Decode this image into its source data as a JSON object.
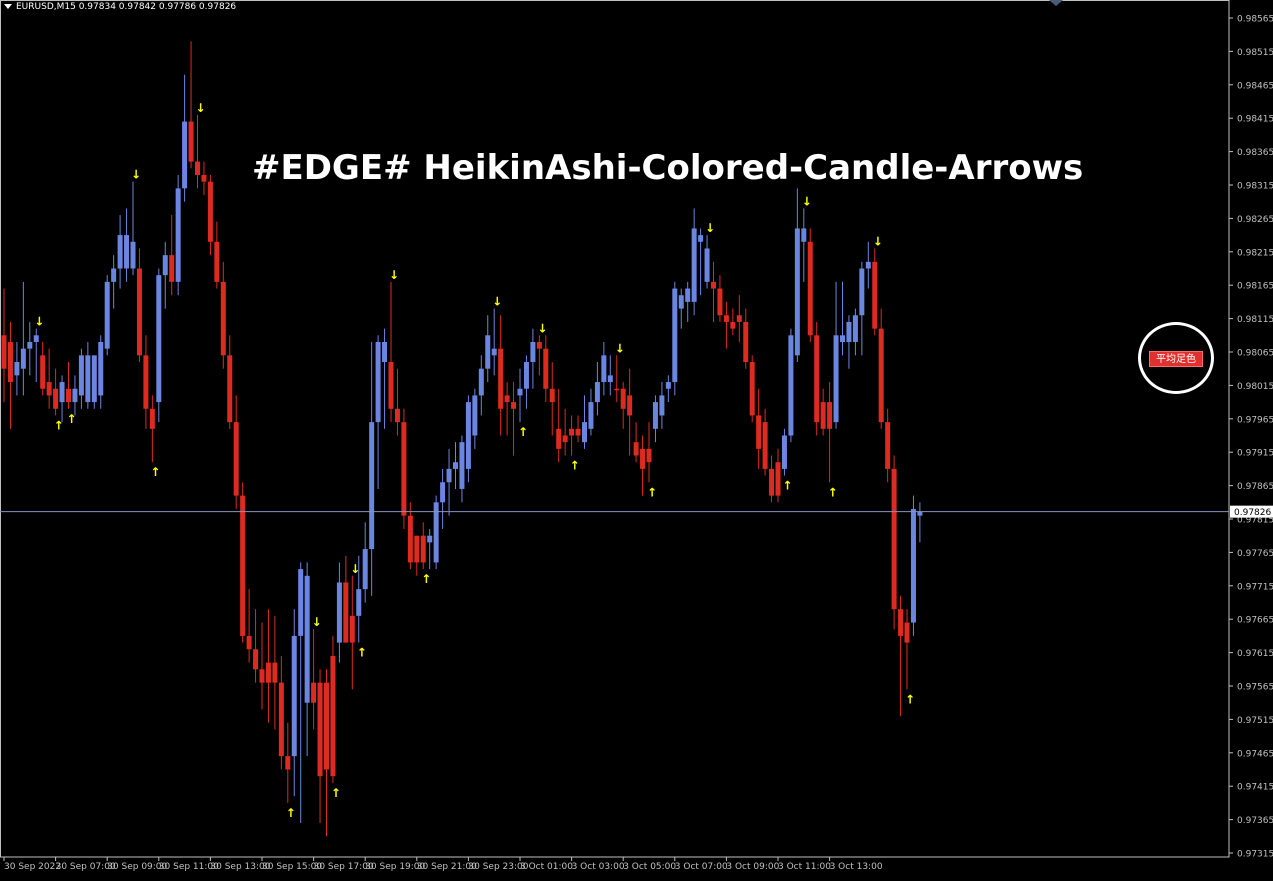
{
  "header": {
    "symbol_line": "EURUSD,M15  0.97834 0.97842 0.97786 0.97826"
  },
  "overlay": {
    "title": "#EDGE# HeikinAshi-Colored-Candle-Arrows",
    "ma_button_label": "平均足色"
  },
  "colors": {
    "background": "#000000",
    "bull": "#6a86e0",
    "bear": "#dd2b22",
    "arrow": "#ffff00",
    "price_line": "#8796c0",
    "axis": "#c0c0c0",
    "ma_button": "#e03030"
  },
  "chart_data": {
    "type": "candlestick",
    "symbol": "EURUSD",
    "timeframe": "M15",
    "ohlc_header": {
      "open": 0.97834,
      "high": 0.97842,
      "low": 0.97786,
      "close": 0.97826
    },
    "current_price": "0.97826",
    "ylim": [
      0.97315,
      0.9859
    ],
    "y_ticks": [
      "0.98565",
      "0.98515",
      "0.98465",
      "0.98415",
      "0.98365",
      "0.98315",
      "0.98265",
      "0.98215",
      "0.98165",
      "0.98115",
      "0.98065",
      "0.98015",
      "0.97965",
      "0.97915",
      "0.97865",
      "0.97815",
      "0.97765",
      "0.97715",
      "0.97665",
      "0.97615",
      "0.97565",
      "0.97515",
      "0.97465",
      "0.97415",
      "0.97365",
      "0.97315"
    ],
    "x_ticks": [
      "30 Sep 2022",
      "30 Sep 07:00",
      "30 Sep 09:00",
      "30 Sep 11:00",
      "30 Sep 13:00",
      "30 Sep 15:00",
      "30 Sep 17:00",
      "30 Sep 19:00",
      "30 Sep 21:00",
      "30 Sep 23:00",
      "3 Oct 01:00",
      "3 Oct 03:00",
      "3 Oct 05:00",
      "3 Oct 07:00",
      "3 Oct 09:00",
      "3 Oct 11:00",
      "3 Oct 13:00"
    ],
    "x_tick_index": [
      0,
      8,
      16,
      24,
      32,
      40,
      48,
      56,
      64,
      72,
      80,
      88,
      96,
      104,
      112,
      120,
      128
    ],
    "candles": [
      {
        "o": 0.9809,
        "h": 0.9816,
        "l": 0.9799,
        "c": 0.9804,
        "dir": "bear"
      },
      {
        "o": 0.9808,
        "h": 0.9811,
        "l": 0.9795,
        "c": 0.9802,
        "dir": "bear"
      },
      {
        "o": 0.9803,
        "h": 0.9808,
        "l": 0.98,
        "c": 0.9805,
        "dir": "bull"
      },
      {
        "o": 0.9804,
        "h": 0.9817,
        "l": 0.98,
        "c": 0.9807,
        "dir": "bull"
      },
      {
        "o": 0.9807,
        "h": 0.9811,
        "l": 0.9803,
        "c": 0.9808,
        "dir": "bull"
      },
      {
        "o": 0.9808,
        "h": 0.981,
        "l": 0.9802,
        "c": 0.9809,
        "dir": "bull",
        "arrow": "down"
      },
      {
        "o": 0.9806,
        "h": 0.9808,
        "l": 0.98,
        "c": 0.9801,
        "dir": "bear"
      },
      {
        "o": 0.9802,
        "h": 0.9807,
        "l": 0.9798,
        "c": 0.98,
        "dir": "bear"
      },
      {
        "o": 0.9801,
        "h": 0.9804,
        "l": 0.9797,
        "c": 0.9798,
        "dir": "bear",
        "arrow": "up"
      },
      {
        "o": 0.9799,
        "h": 0.9803,
        "l": 0.9796,
        "c": 0.9802,
        "dir": "bull"
      },
      {
        "o": 0.9801,
        "h": 0.9805,
        "l": 0.9798,
        "c": 0.9799,
        "dir": "bear",
        "arrow": "up"
      },
      {
        "o": 0.9799,
        "h": 0.9803,
        "l": 0.9797,
        "c": 0.9801,
        "dir": "bull"
      },
      {
        "o": 0.98,
        "h": 0.9807,
        "l": 0.9798,
        "c": 0.9806,
        "dir": "bull"
      },
      {
        "o": 0.9799,
        "h": 0.9808,
        "l": 0.9798,
        "c": 0.9806,
        "dir": "bull"
      },
      {
        "o": 0.9799,
        "h": 0.9806,
        "l": 0.9798,
        "c": 0.9806,
        "dir": "bull"
      },
      {
        "o": 0.98,
        "h": 0.9809,
        "l": 0.9798,
        "c": 0.9808,
        "dir": "bull"
      },
      {
        "o": 0.9807,
        "h": 0.9818,
        "l": 0.9806,
        "c": 0.9817,
        "dir": "bull"
      },
      {
        "o": 0.9817,
        "h": 0.9821,
        "l": 0.9813,
        "c": 0.9819,
        "dir": "bull"
      },
      {
        "o": 0.9819,
        "h": 0.9827,
        "l": 0.9816,
        "c": 0.9824,
        "dir": "bull"
      },
      {
        "o": 0.9819,
        "h": 0.9828,
        "l": 0.9817,
        "c": 0.9824,
        "dir": "bull"
      },
      {
        "o": 0.9819,
        "h": 0.9832,
        "l": 0.9818,
        "c": 0.9823,
        "dir": "bull",
        "arrow": "down"
      },
      {
        "o": 0.9819,
        "h": 0.9822,
        "l": 0.9805,
        "c": 0.9806,
        "dir": "bear"
      },
      {
        "o": 0.9806,
        "h": 0.9809,
        "l": 0.9795,
        "c": 0.9798,
        "dir": "bear"
      },
      {
        "o": 0.9798,
        "h": 0.98,
        "l": 0.979,
        "c": 0.9795,
        "dir": "bear",
        "arrow": "up"
      },
      {
        "o": 0.9799,
        "h": 0.9819,
        "l": 0.9796,
        "c": 0.9818,
        "dir": "bull"
      },
      {
        "o": 0.9818,
        "h": 0.9823,
        "l": 0.9813,
        "c": 0.9821,
        "dir": "bull"
      },
      {
        "o": 0.9821,
        "h": 0.9827,
        "l": 0.9815,
        "c": 0.9817,
        "dir": "bear"
      },
      {
        "o": 0.9817,
        "h": 0.9833,
        "l": 0.9815,
        "c": 0.9831,
        "dir": "bull"
      },
      {
        "o": 0.9831,
        "h": 0.9848,
        "l": 0.9829,
        "c": 0.9841,
        "dir": "bull"
      },
      {
        "o": 0.9841,
        "h": 0.9853,
        "l": 0.9834,
        "c": 0.9835,
        "dir": "bear"
      },
      {
        "o": 0.9835,
        "h": 0.9842,
        "l": 0.9831,
        "c": 0.9833,
        "dir": "bear",
        "arrow": "down"
      },
      {
        "o": 0.9833,
        "h": 0.9835,
        "l": 0.983,
        "c": 0.9832,
        "dir": "bear"
      },
      {
        "o": 0.9832,
        "h": 0.9833,
        "l": 0.9821,
        "c": 0.9823,
        "dir": "bear"
      },
      {
        "o": 0.9823,
        "h": 0.9826,
        "l": 0.9816,
        "c": 0.9817,
        "dir": "bear"
      },
      {
        "o": 0.9817,
        "h": 0.982,
        "l": 0.9804,
        "c": 0.9806,
        "dir": "bear"
      },
      {
        "o": 0.9806,
        "h": 0.9809,
        "l": 0.9795,
        "c": 0.9796,
        "dir": "bear"
      },
      {
        "o": 0.9796,
        "h": 0.98,
        "l": 0.9783,
        "c": 0.9785,
        "dir": "bear"
      },
      {
        "o": 0.9785,
        "h": 0.9787,
        "l": 0.9763,
        "c": 0.9764,
        "dir": "bear"
      },
      {
        "o": 0.9764,
        "h": 0.9771,
        "l": 0.976,
        "c": 0.9762,
        "dir": "bear"
      },
      {
        "o": 0.9762,
        "h": 0.9768,
        "l": 0.9757,
        "c": 0.9759,
        "dir": "bear"
      },
      {
        "o": 0.9759,
        "h": 0.9766,
        "l": 0.9753,
        "c": 0.9757,
        "dir": "bear"
      },
      {
        "o": 0.9757,
        "h": 0.9768,
        "l": 0.9751,
        "c": 0.976,
        "dir": "bear"
      },
      {
        "o": 0.976,
        "h": 0.9767,
        "l": 0.975,
        "c": 0.9757,
        "dir": "bear"
      },
      {
        "o": 0.9757,
        "h": 0.9761,
        "l": 0.9744,
        "c": 0.9746,
        "dir": "bear"
      },
      {
        "o": 0.9746,
        "h": 0.9751,
        "l": 0.9739,
        "c": 0.9744,
        "dir": "bear",
        "arrow": "up"
      },
      {
        "o": 0.9746,
        "h": 0.9768,
        "l": 0.974,
        "c": 0.9764,
        "dir": "bull"
      },
      {
        "o": 0.9764,
        "h": 0.9775,
        "l": 0.9736,
        "c": 0.9774,
        "dir": "bull"
      },
      {
        "o": 0.9754,
        "h": 0.9775,
        "l": 0.9746,
        "c": 0.9773,
        "dir": "bull"
      },
      {
        "o": 0.9757,
        "h": 0.9765,
        "l": 0.975,
        "c": 0.9754,
        "dir": "bear",
        "arrow": "down"
      },
      {
        "o": 0.9757,
        "h": 0.9759,
        "l": 0.9736,
        "c": 0.9743,
        "dir": "bear"
      },
      {
        "o": 0.9757,
        "h": 0.9759,
        "l": 0.9734,
        "c": 0.9744,
        "dir": "bear"
      },
      {
        "o": 0.9761,
        "h": 0.9764,
        "l": 0.9742,
        "c": 0.9743,
        "dir": "bear",
        "arrow": "up"
      },
      {
        "o": 0.9763,
        "h": 0.9775,
        "l": 0.976,
        "c": 0.9772,
        "dir": "bull"
      },
      {
        "o": 0.9772,
        "h": 0.9776,
        "l": 0.9763,
        "c": 0.9763,
        "dir": "bear"
      },
      {
        "o": 0.9763,
        "h": 0.9773,
        "l": 0.9756,
        "c": 0.9767,
        "dir": "bear",
        "arrow": "down"
      },
      {
        "o": 0.9767,
        "h": 0.9776,
        "l": 0.9763,
        "c": 0.9771,
        "dir": "bull",
        "arrow": "up"
      },
      {
        "o": 0.9771,
        "h": 0.9781,
        "l": 0.9769,
        "c": 0.9777,
        "dir": "bull"
      },
      {
        "o": 0.9777,
        "h": 0.9808,
        "l": 0.977,
        "c": 0.9796,
        "dir": "bull"
      },
      {
        "o": 0.9796,
        "h": 0.9809,
        "l": 0.9786,
        "c": 0.9808,
        "dir": "bull"
      },
      {
        "o": 0.9808,
        "h": 0.981,
        "l": 0.9795,
        "c": 0.9805,
        "dir": "bull"
      },
      {
        "o": 0.9805,
        "h": 0.9817,
        "l": 0.9796,
        "c": 0.9798,
        "dir": "bear",
        "arrow": "down"
      },
      {
        "o": 0.9798,
        "h": 0.9804,
        "l": 0.9794,
        "c": 0.9796,
        "dir": "bear"
      },
      {
        "o": 0.9796,
        "h": 0.9798,
        "l": 0.978,
        "c": 0.9782,
        "dir": "bear"
      },
      {
        "o": 0.9782,
        "h": 0.9784,
        "l": 0.9774,
        "c": 0.9775,
        "dir": "bear"
      },
      {
        "o": 0.9775,
        "h": 0.9779,
        "l": 0.9773,
        "c": 0.9779,
        "dir": "bear"
      },
      {
        "o": 0.9779,
        "h": 0.9781,
        "l": 0.9774,
        "c": 0.9775,
        "dir": "bear",
        "arrow": "up"
      },
      {
        "o": 0.9778,
        "h": 0.978,
        "l": 0.9774,
        "c": 0.9779,
        "dir": "bull"
      },
      {
        "o": 0.9775,
        "h": 0.9785,
        "l": 0.9774,
        "c": 0.9784,
        "dir": "bull"
      },
      {
        "o": 0.9784,
        "h": 0.9789,
        "l": 0.978,
        "c": 0.9787,
        "dir": "bull"
      },
      {
        "o": 0.9787,
        "h": 0.9792,
        "l": 0.9782,
        "c": 0.9789,
        "dir": "bull"
      },
      {
        "o": 0.9789,
        "h": 0.9793,
        "l": 0.9786,
        "c": 0.979,
        "dir": "bull"
      },
      {
        "o": 0.9786,
        "h": 0.9794,
        "l": 0.9784,
        "c": 0.9793,
        "dir": "bull"
      },
      {
        "o": 0.9789,
        "h": 0.98,
        "l": 0.9787,
        "c": 0.9799,
        "dir": "bull"
      },
      {
        "o": 0.9794,
        "h": 0.9801,
        "l": 0.9792,
        "c": 0.98,
        "dir": "bull"
      },
      {
        "o": 0.98,
        "h": 0.9806,
        "l": 0.9797,
        "c": 0.9804,
        "dir": "bull"
      },
      {
        "o": 0.9804,
        "h": 0.9812,
        "l": 0.9802,
        "c": 0.9809,
        "dir": "bull"
      },
      {
        "o": 0.9806,
        "h": 0.9813,
        "l": 0.9803,
        "c": 0.9807,
        "dir": "bull",
        "arrow": "down"
      },
      {
        "o": 0.9807,
        "h": 0.9812,
        "l": 0.9794,
        "c": 0.9798,
        "dir": "bear"
      },
      {
        "o": 0.98,
        "h": 0.9802,
        "l": 0.9794,
        "c": 0.9799,
        "dir": "bear"
      },
      {
        "o": 0.9798,
        "h": 0.9802,
        "l": 0.9791,
        "c": 0.9799,
        "dir": "bear"
      },
      {
        "o": 0.98,
        "h": 0.9804,
        "l": 0.9796,
        "c": 0.9801,
        "dir": "bull",
        "arrow": "up"
      },
      {
        "o": 0.9801,
        "h": 0.9806,
        "l": 0.9798,
        "c": 0.9805,
        "dir": "bull"
      },
      {
        "o": 0.9805,
        "h": 0.981,
        "l": 0.9801,
        "c": 0.9808,
        "dir": "bull"
      },
      {
        "o": 0.9808,
        "h": 0.9809,
        "l": 0.9803,
        "c": 0.9807,
        "dir": "bear",
        "arrow": "down"
      },
      {
        "o": 0.9807,
        "h": 0.9809,
        "l": 0.9799,
        "c": 0.9801,
        "dir": "bear"
      },
      {
        "o": 0.9801,
        "h": 0.9805,
        "l": 0.9794,
        "c": 0.9799,
        "dir": "bear"
      },
      {
        "o": 0.9795,
        "h": 0.9801,
        "l": 0.979,
        "c": 0.9792,
        "dir": "bear"
      },
      {
        "o": 0.9794,
        "h": 0.9798,
        "l": 0.9791,
        "c": 0.9793,
        "dir": "bear"
      },
      {
        "o": 0.9794,
        "h": 0.9797,
        "l": 0.9791,
        "c": 0.9795,
        "dir": "bear",
        "arrow": "up"
      },
      {
        "o": 0.9795,
        "h": 0.9797,
        "l": 0.9793,
        "c": 0.9794,
        "dir": "bear"
      },
      {
        "o": 0.9793,
        "h": 0.98,
        "l": 0.9792,
        "c": 0.9796,
        "dir": "bull"
      },
      {
        "o": 0.9795,
        "h": 0.9801,
        "l": 0.9794,
        "c": 0.9799,
        "dir": "bull"
      },
      {
        "o": 0.9799,
        "h": 0.9805,
        "l": 0.9797,
        "c": 0.9802,
        "dir": "bull"
      },
      {
        "o": 0.9802,
        "h": 0.9808,
        "l": 0.98,
        "c": 0.9806,
        "dir": "bull"
      },
      {
        "o": 0.9802,
        "h": 0.9806,
        "l": 0.98,
        "c": 0.9803,
        "dir": "bull"
      },
      {
        "o": 0.9801,
        "h": 0.9806,
        "l": 0.9799,
        "c": 0.9801,
        "dir": "bear",
        "arrow": "down"
      },
      {
        "o": 0.9801,
        "h": 0.9802,
        "l": 0.9795,
        "c": 0.9798,
        "dir": "bear"
      },
      {
        "o": 0.98,
        "h": 0.9804,
        "l": 0.9791,
        "c": 0.9797,
        "dir": "bear"
      },
      {
        "o": 0.9793,
        "h": 0.9796,
        "l": 0.979,
        "c": 0.9791,
        "dir": "bear"
      },
      {
        "o": 0.9792,
        "h": 0.9794,
        "l": 0.9785,
        "c": 0.9789,
        "dir": "bear"
      },
      {
        "o": 0.9792,
        "h": 0.9796,
        "l": 0.9787,
        "c": 0.979,
        "dir": "bear",
        "arrow": "up"
      },
      {
        "o": 0.9795,
        "h": 0.98,
        "l": 0.9793,
        "c": 0.9799,
        "dir": "bull"
      },
      {
        "o": 0.9797,
        "h": 0.9802,
        "l": 0.9795,
        "c": 0.98,
        "dir": "bull"
      },
      {
        "o": 0.9801,
        "h": 0.9803,
        "l": 0.9799,
        "c": 0.9802,
        "dir": "bull"
      },
      {
        "o": 0.9802,
        "h": 0.9817,
        "l": 0.98,
        "c": 0.9816,
        "dir": "bull"
      },
      {
        "o": 0.9815,
        "h": 0.9816,
        "l": 0.981,
        "c": 0.9813,
        "dir": "bull"
      },
      {
        "o": 0.9814,
        "h": 0.9817,
        "l": 0.9811,
        "c": 0.9816,
        "dir": "bull"
      },
      {
        "o": 0.9814,
        "h": 0.9828,
        "l": 0.9812,
        "c": 0.9825,
        "dir": "bull"
      },
      {
        "o": 0.9824,
        "h": 0.9825,
        "l": 0.9815,
        "c": 0.9823,
        "dir": "bull"
      },
      {
        "o": 0.9822,
        "h": 0.9824,
        "l": 0.9816,
        "c": 0.9817,
        "dir": "bull",
        "arrow": "down"
      },
      {
        "o": 0.9817,
        "h": 0.982,
        "l": 0.9811,
        "c": 0.9816,
        "dir": "bear"
      },
      {
        "o": 0.9816,
        "h": 0.9818,
        "l": 0.9811,
        "c": 0.9812,
        "dir": "bear"
      },
      {
        "o": 0.9812,
        "h": 0.9814,
        "l": 0.9807,
        "c": 0.9811,
        "dir": "bear"
      },
      {
        "o": 0.9811,
        "h": 0.9813,
        "l": 0.9809,
        "c": 0.981,
        "dir": "bear"
      },
      {
        "o": 0.9812,
        "h": 0.9815,
        "l": 0.9808,
        "c": 0.9811,
        "dir": "bear"
      },
      {
        "o": 0.9811,
        "h": 0.9813,
        "l": 0.9804,
        "c": 0.9805,
        "dir": "bear"
      },
      {
        "o": 0.9805,
        "h": 0.9806,
        "l": 0.9796,
        "c": 0.9797,
        "dir": "bear"
      },
      {
        "o": 0.9797,
        "h": 0.9801,
        "l": 0.9789,
        "c": 0.9792,
        "dir": "bear"
      },
      {
        "o": 0.9796,
        "h": 0.9798,
        "l": 0.9788,
        "c": 0.9789,
        "dir": "bear"
      },
      {
        "o": 0.9789,
        "h": 0.9791,
        "l": 0.9784,
        "c": 0.9785,
        "dir": "bear"
      },
      {
        "o": 0.979,
        "h": 0.9792,
        "l": 0.9784,
        "c": 0.9785,
        "dir": "bear"
      },
      {
        "o": 0.9789,
        "h": 0.9795,
        "l": 0.9788,
        "c": 0.9794,
        "dir": "bull",
        "arrow": "up"
      },
      {
        "o": 0.9794,
        "h": 0.981,
        "l": 0.9793,
        "c": 0.9809,
        "dir": "bull"
      },
      {
        "o": 0.9806,
        "h": 0.9831,
        "l": 0.9805,
        "c": 0.9825,
        "dir": "bull"
      },
      {
        "o": 0.9823,
        "h": 0.9828,
        "l": 0.9817,
        "c": 0.9825,
        "dir": "bull",
        "arrow": "down"
      },
      {
        "o": 0.9823,
        "h": 0.9825,
        "l": 0.9808,
        "c": 0.9809,
        "dir": "bear"
      },
      {
        "o": 0.9809,
        "h": 0.9811,
        "l": 0.9794,
        "c": 0.9796,
        "dir": "bear"
      },
      {
        "o": 0.9799,
        "h": 0.9801,
        "l": 0.9794,
        "c": 0.9795,
        "dir": "bear"
      },
      {
        "o": 0.9799,
        "h": 0.9802,
        "l": 0.9787,
        "c": 0.9795,
        "dir": "bear",
        "arrow": "up"
      },
      {
        "o": 0.9796,
        "h": 0.9817,
        "l": 0.9795,
        "c": 0.9809,
        "dir": "bull"
      },
      {
        "o": 0.9809,
        "h": 0.9817,
        "l": 0.9806,
        "c": 0.9808,
        "dir": "bull"
      },
      {
        "o": 0.9808,
        "h": 0.9812,
        "l": 0.9804,
        "c": 0.9811,
        "dir": "bull"
      },
      {
        "o": 0.9808,
        "h": 0.9813,
        "l": 0.9806,
        "c": 0.9812,
        "dir": "bull"
      },
      {
        "o": 0.9812,
        "h": 0.982,
        "l": 0.9806,
        "c": 0.9819,
        "dir": "bull"
      },
      {
        "o": 0.9819,
        "h": 0.9823,
        "l": 0.9816,
        "c": 0.982,
        "dir": "bull"
      },
      {
        "o": 0.982,
        "h": 0.9822,
        "l": 0.9809,
        "c": 0.981,
        "dir": "bear",
        "arrow": "down"
      },
      {
        "o": 0.981,
        "h": 0.9813,
        "l": 0.9795,
        "c": 0.9796,
        "dir": "bear"
      },
      {
        "o": 0.9796,
        "h": 0.9798,
        "l": 0.9787,
        "c": 0.9789,
        "dir": "bear"
      },
      {
        "o": 0.9789,
        "h": 0.9791,
        "l": 0.9765,
        "c": 0.9768,
        "dir": "bear"
      },
      {
        "o": 0.9768,
        "h": 0.977,
        "l": 0.9752,
        "c": 0.9764,
        "dir": "bear"
      },
      {
        "o": 0.9766,
        "h": 0.9768,
        "l": 0.9756,
        "c": 0.9763,
        "dir": "bear",
        "arrow": "up"
      },
      {
        "o": 0.9766,
        "h": 0.9785,
        "l": 0.9764,
        "c": 0.9783,
        "dir": "bull"
      },
      {
        "o": 0.9782,
        "h": 0.9784,
        "l": 0.9778,
        "c": 0.97826,
        "dir": "bull"
      }
    ]
  }
}
